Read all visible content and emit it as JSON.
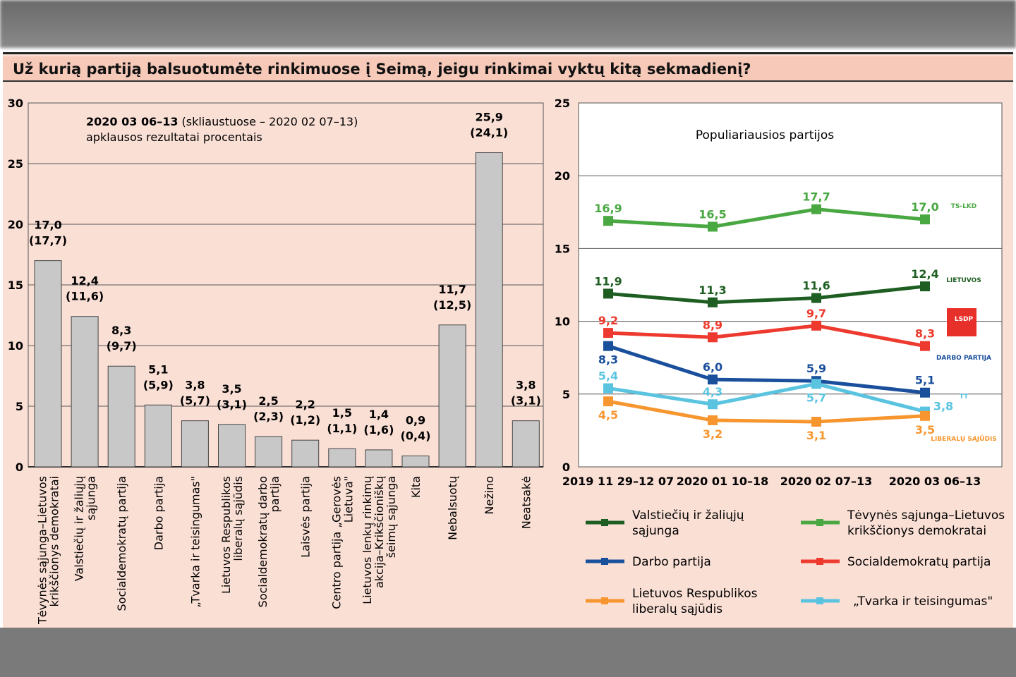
{
  "title": "Už kurią partiją balsuotumėte rinkimuose į Seimą, jeigu rinkimai vyktų kitą sekmadienį?",
  "chart_data": [
    {
      "type": "bar",
      "title_bold": "2020 03 06–13",
      "title_rest": " (skliaustuose – 2020 02 07–13)",
      "subtitle": "apklausos rezultatai procentais",
      "ylim": [
        0,
        30
      ],
      "yticks": [
        0,
        5,
        10,
        15,
        20,
        25,
        30
      ],
      "categories": [
        [
          "Tėvynės sąjunga–Lietuvos",
          "krikščionys demokratai"
        ],
        [
          "Valstiečių ir žaliųjų",
          "sąjunga"
        ],
        [
          "Socialdemokratų partija"
        ],
        [
          "Darbo partija"
        ],
        [
          "„Tvarka ir teisingumas\""
        ],
        [
          "Lietuvos Respublikos",
          "liberalų sąjūdis"
        ],
        [
          "Socialdemokratų darbo",
          "partija"
        ],
        [
          "Laisvės partija"
        ],
        [
          "Centro partija „Gerovės",
          "Lietuva\""
        ],
        [
          "Lietuvos lenkų rinkimų",
          "akcija–Krikščioniškų",
          "šeimų sąjunga"
        ],
        [
          "Kita"
        ],
        [
          "Nebalsuotų"
        ],
        [
          "Nežino"
        ],
        [
          "Neatsakė"
        ]
      ],
      "values": [
        17.0,
        12.4,
        8.3,
        5.1,
        3.8,
        3.5,
        2.5,
        2.2,
        1.5,
        1.4,
        0.9,
        11.7,
        25.9,
        3.8
      ],
      "labels": [
        "17,0",
        "12,4",
        "8,3",
        "5,1",
        "3,8",
        "3,5",
        "2,5",
        "2,2",
        "1,5",
        "1,4",
        "0,9",
        "11,7",
        "25,9",
        "3,8"
      ],
      "previous_labels": [
        "(17,7)",
        "(11,6)",
        "(9,7)",
        "(5,9)",
        "(5,7)",
        "(3,1)",
        "(2,3)",
        "(1,2)",
        "(1,1)",
        "(1,6)",
        "(0,4)",
        "(12,5)",
        "(24,1)",
        "(3,1)"
      ]
    },
    {
      "type": "line",
      "title": "Populiariausios partijos",
      "ylim": [
        0,
        25
      ],
      "yticks": [
        0,
        5,
        10,
        15,
        20,
        25
      ],
      "x": [
        "2019 11 29–12 07",
        "2020 01 10–18",
        "2020 02 07–13",
        "2020 03 06–13"
      ],
      "series": [
        {
          "name": [
            "Tėvynės sąjunga–Lietuvos",
            "krikščionys demokratai"
          ],
          "color": "#4aa843",
          "values": [
            16.9,
            16.5,
            17.7,
            17.0
          ],
          "labels": [
            "16,9",
            "16,5",
            "17,7",
            "17,0"
          ],
          "logo": "TS-LKD"
        },
        {
          "name": [
            "Valstiečių ir žaliųjų",
            "sąjunga"
          ],
          "color": "#1e5e22",
          "values": [
            11.9,
            11.3,
            11.6,
            12.4
          ],
          "labels": [
            "11,9",
            "11,3",
            "11,6",
            "12,4"
          ],
          "logo": "LIETUVOS"
        },
        {
          "name": [
            "Socialdemokratų partija"
          ],
          "color": "#ee3a2e",
          "values": [
            9.2,
            8.9,
            9.7,
            8.3
          ],
          "labels": [
            "9,2",
            "8,9",
            "9,7",
            "8,3"
          ],
          "logo": "LSDP"
        },
        {
          "name": [
            "Darbo partija"
          ],
          "color": "#1a4f9c",
          "values": [
            8.3,
            6.0,
            5.9,
            5.1
          ],
          "labels": [
            "8,3",
            "6,0",
            "5,9",
            "5,1"
          ],
          "logo": "DARBO PARTIJA"
        },
        {
          "name": [
            "„Tvarka ir teisingumas\""
          ],
          "color": "#5ac4e0",
          "values": [
            5.4,
            4.3,
            5.7,
            3.8
          ],
          "labels": [
            "5,4",
            "4,3",
            "5,7",
            "3,8"
          ],
          "logo": "TT"
        },
        {
          "name": [
            "Lietuvos Respublikos",
            "liberalų sąjūdis"
          ],
          "color": "#f7962f",
          "values": [
            4.5,
            3.2,
            3.1,
            3.5
          ],
          "labels": [
            "4,5",
            "3,2",
            "3,1",
            "3,5"
          ],
          "logo": "LIBERALŲ SĄJŪDIS"
        }
      ]
    }
  ]
}
